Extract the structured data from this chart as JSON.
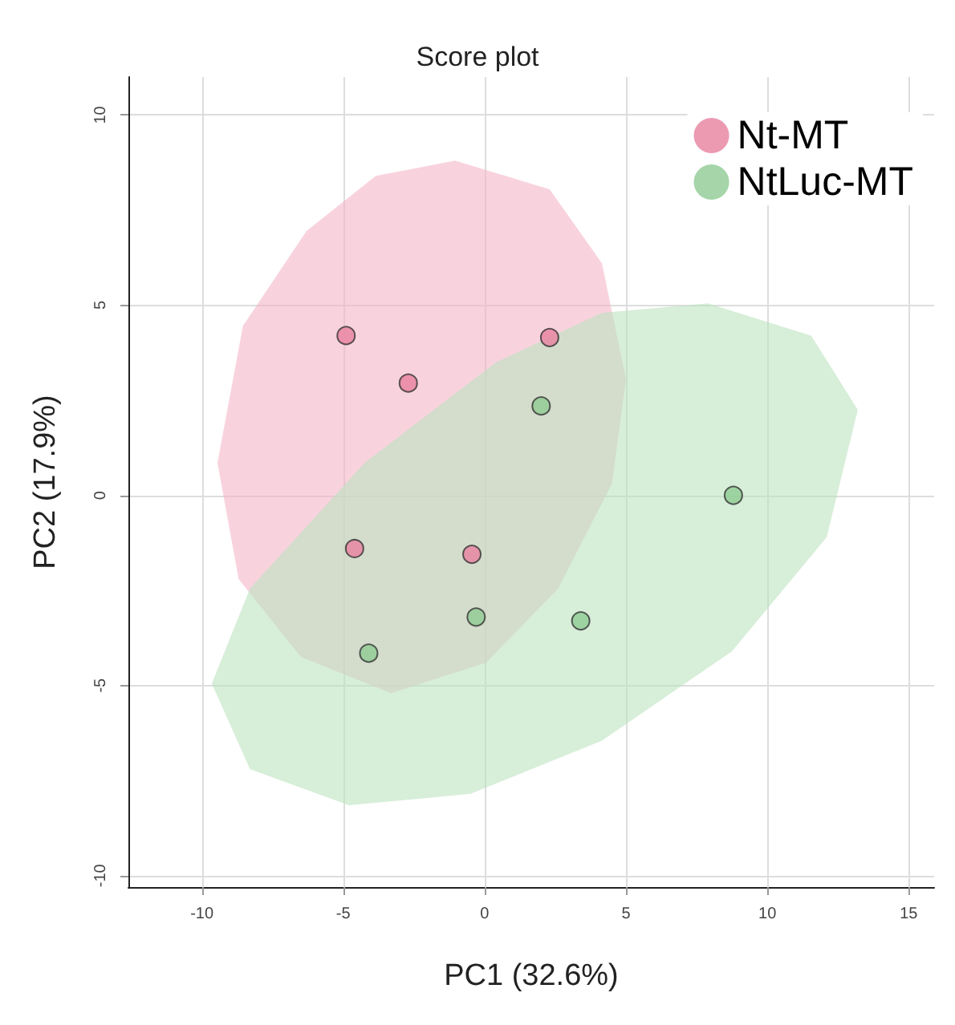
{
  "chart_data": {
    "type": "scatter",
    "title": "Score plot",
    "xlabel": "PC1 (32.6%)",
    "ylabel": "PC2 (17.9%)",
    "xlim": [
      -12.6,
      15.9
    ],
    "ylim": [
      -10.3,
      11.0
    ],
    "xticks": [
      -10,
      -5,
      0,
      5,
      10,
      15
    ],
    "yticks": [
      -10,
      -5,
      0,
      5,
      10
    ],
    "grid": true,
    "legend": "top right",
    "series": [
      {
        "type": "area",
        "color": "#f4b6c8",
        "x": [
          -1.05,
          2.3,
          4.15,
          5.0,
          4.5,
          2.6,
          0.05,
          -3.3,
          -6.5,
          -8.7,
          -9.45,
          -8.55,
          -6.3,
          -3.85
        ],
        "values": [
          8.8,
          8.05,
          6.1,
          3.05,
          0.3,
          -2.45,
          -4.4,
          -5.2,
          -4.25,
          -2.2,
          0.85,
          4.45,
          6.95,
          8.4
        ]
      },
      {
        "type": "area",
        "color": "#bde3c0",
        "x": [
          7.9,
          11.55,
          13.2,
          12.1,
          8.75,
          4.15,
          -0.5,
          -4.8,
          -8.3,
          -9.65,
          -8.3,
          -4.25,
          0.4,
          4.15
        ],
        "values": [
          5.05,
          4.2,
          2.25,
          -1.1,
          -4.1,
          -6.45,
          -7.85,
          -8.15,
          -7.2,
          -4.95,
          -2.45,
          0.85,
          3.5,
          4.8
        ]
      },
      {
        "name": "Nt-MT",
        "marker": "circle",
        "color": "#e7819f",
        "x": [
          -4.9,
          -2.7,
          2.3,
          -4.6,
          -0.45
        ],
        "values": [
          4.2,
          2.95,
          4.15,
          -1.4,
          -1.55
        ]
      },
      {
        "name": "NtLuc-MT",
        "marker": "circle",
        "color": "#8fcb92",
        "x": [
          2.0,
          8.8,
          -0.3,
          3.4,
          -4.1
        ],
        "values": [
          2.35,
          0.0,
          -3.2,
          -3.3,
          -4.15
        ]
      }
    ]
  }
}
